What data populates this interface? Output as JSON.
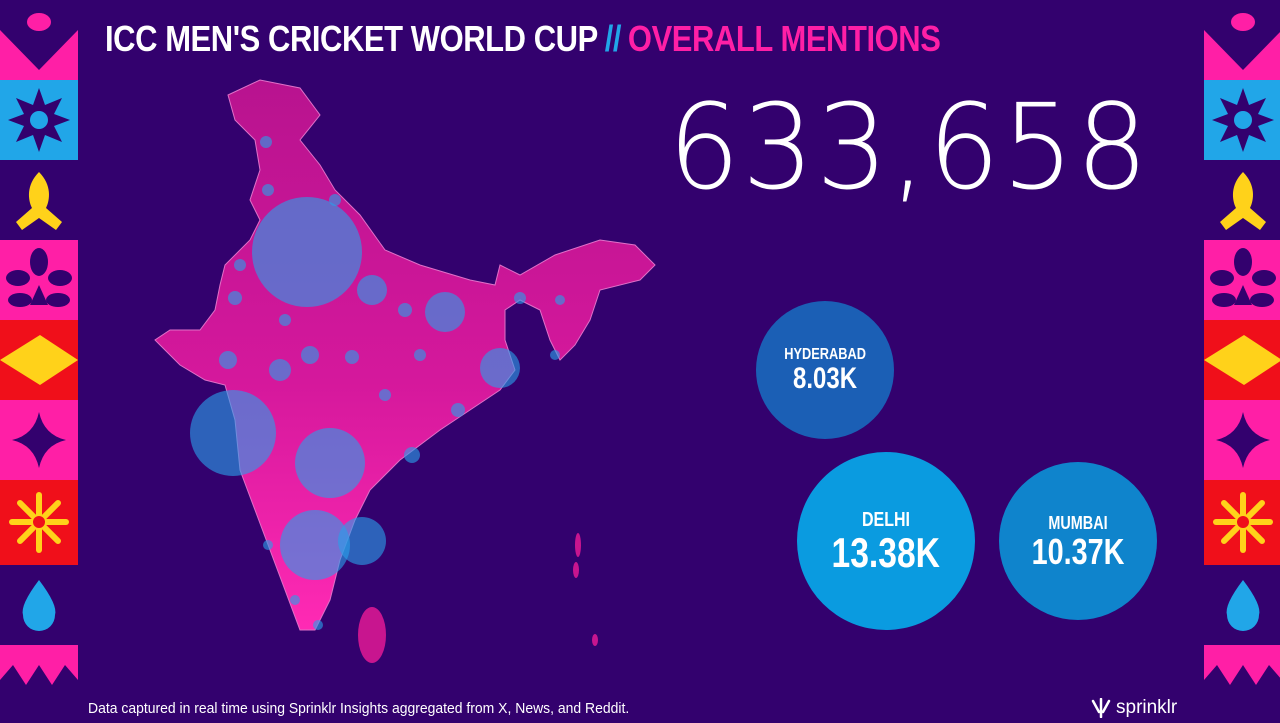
{
  "header": {
    "title_main": "ICC MEN'S CRICKET WORLD CUP",
    "separator": "//",
    "title_accent": "OVERALL MENTIONS"
  },
  "total_mentions": "633,658",
  "cities": [
    {
      "name": "HYDERABAD",
      "value": "8.03K",
      "color": "#1b5fb5"
    },
    {
      "name": "DELHI",
      "value": "13.38K",
      "color": "#0a9be0"
    },
    {
      "name": "MUMBAI",
      "value": "10.37K",
      "color": "#0f84cc"
    }
  ],
  "footer": {
    "note": "Data captured in real time using Sprinklr Insights aggregated from X, News, and Reddit.",
    "brand": "sprinklr"
  },
  "colors": {
    "background": "#33016e",
    "pink": "#ff1fa6",
    "blue": "#21a6e8",
    "red": "#f00f1a",
    "yellow": "#ffd21a"
  }
}
